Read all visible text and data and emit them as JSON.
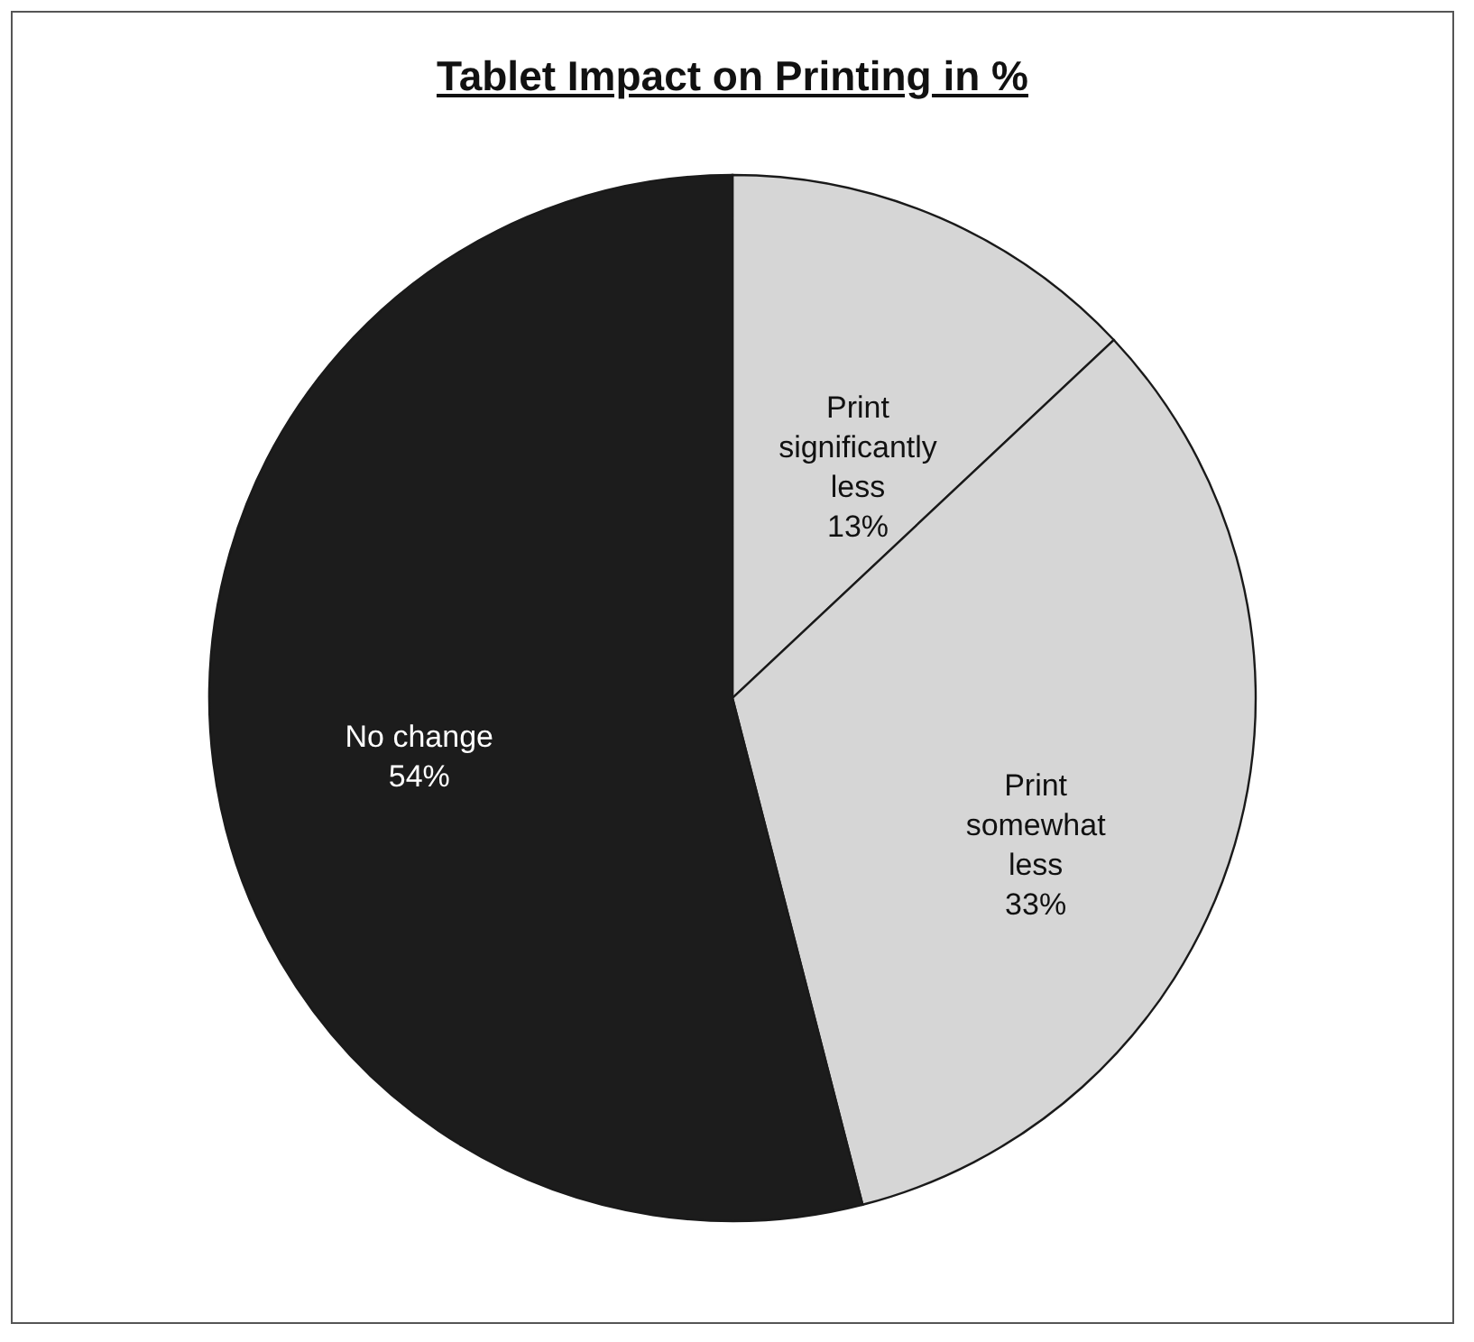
{
  "chart_data": {
    "type": "pie",
    "title": "Tablet Impact on Printing in %",
    "categories": [
      "Print significantly less",
      "Print somewhat less",
      "No change"
    ],
    "values": [
      13,
      33,
      54
    ],
    "colors": [
      "#d6d6d6",
      "#d6d6d6",
      "#1c1c1c"
    ],
    "value_labels": [
      "13%",
      "33%",
      "54%"
    ]
  }
}
